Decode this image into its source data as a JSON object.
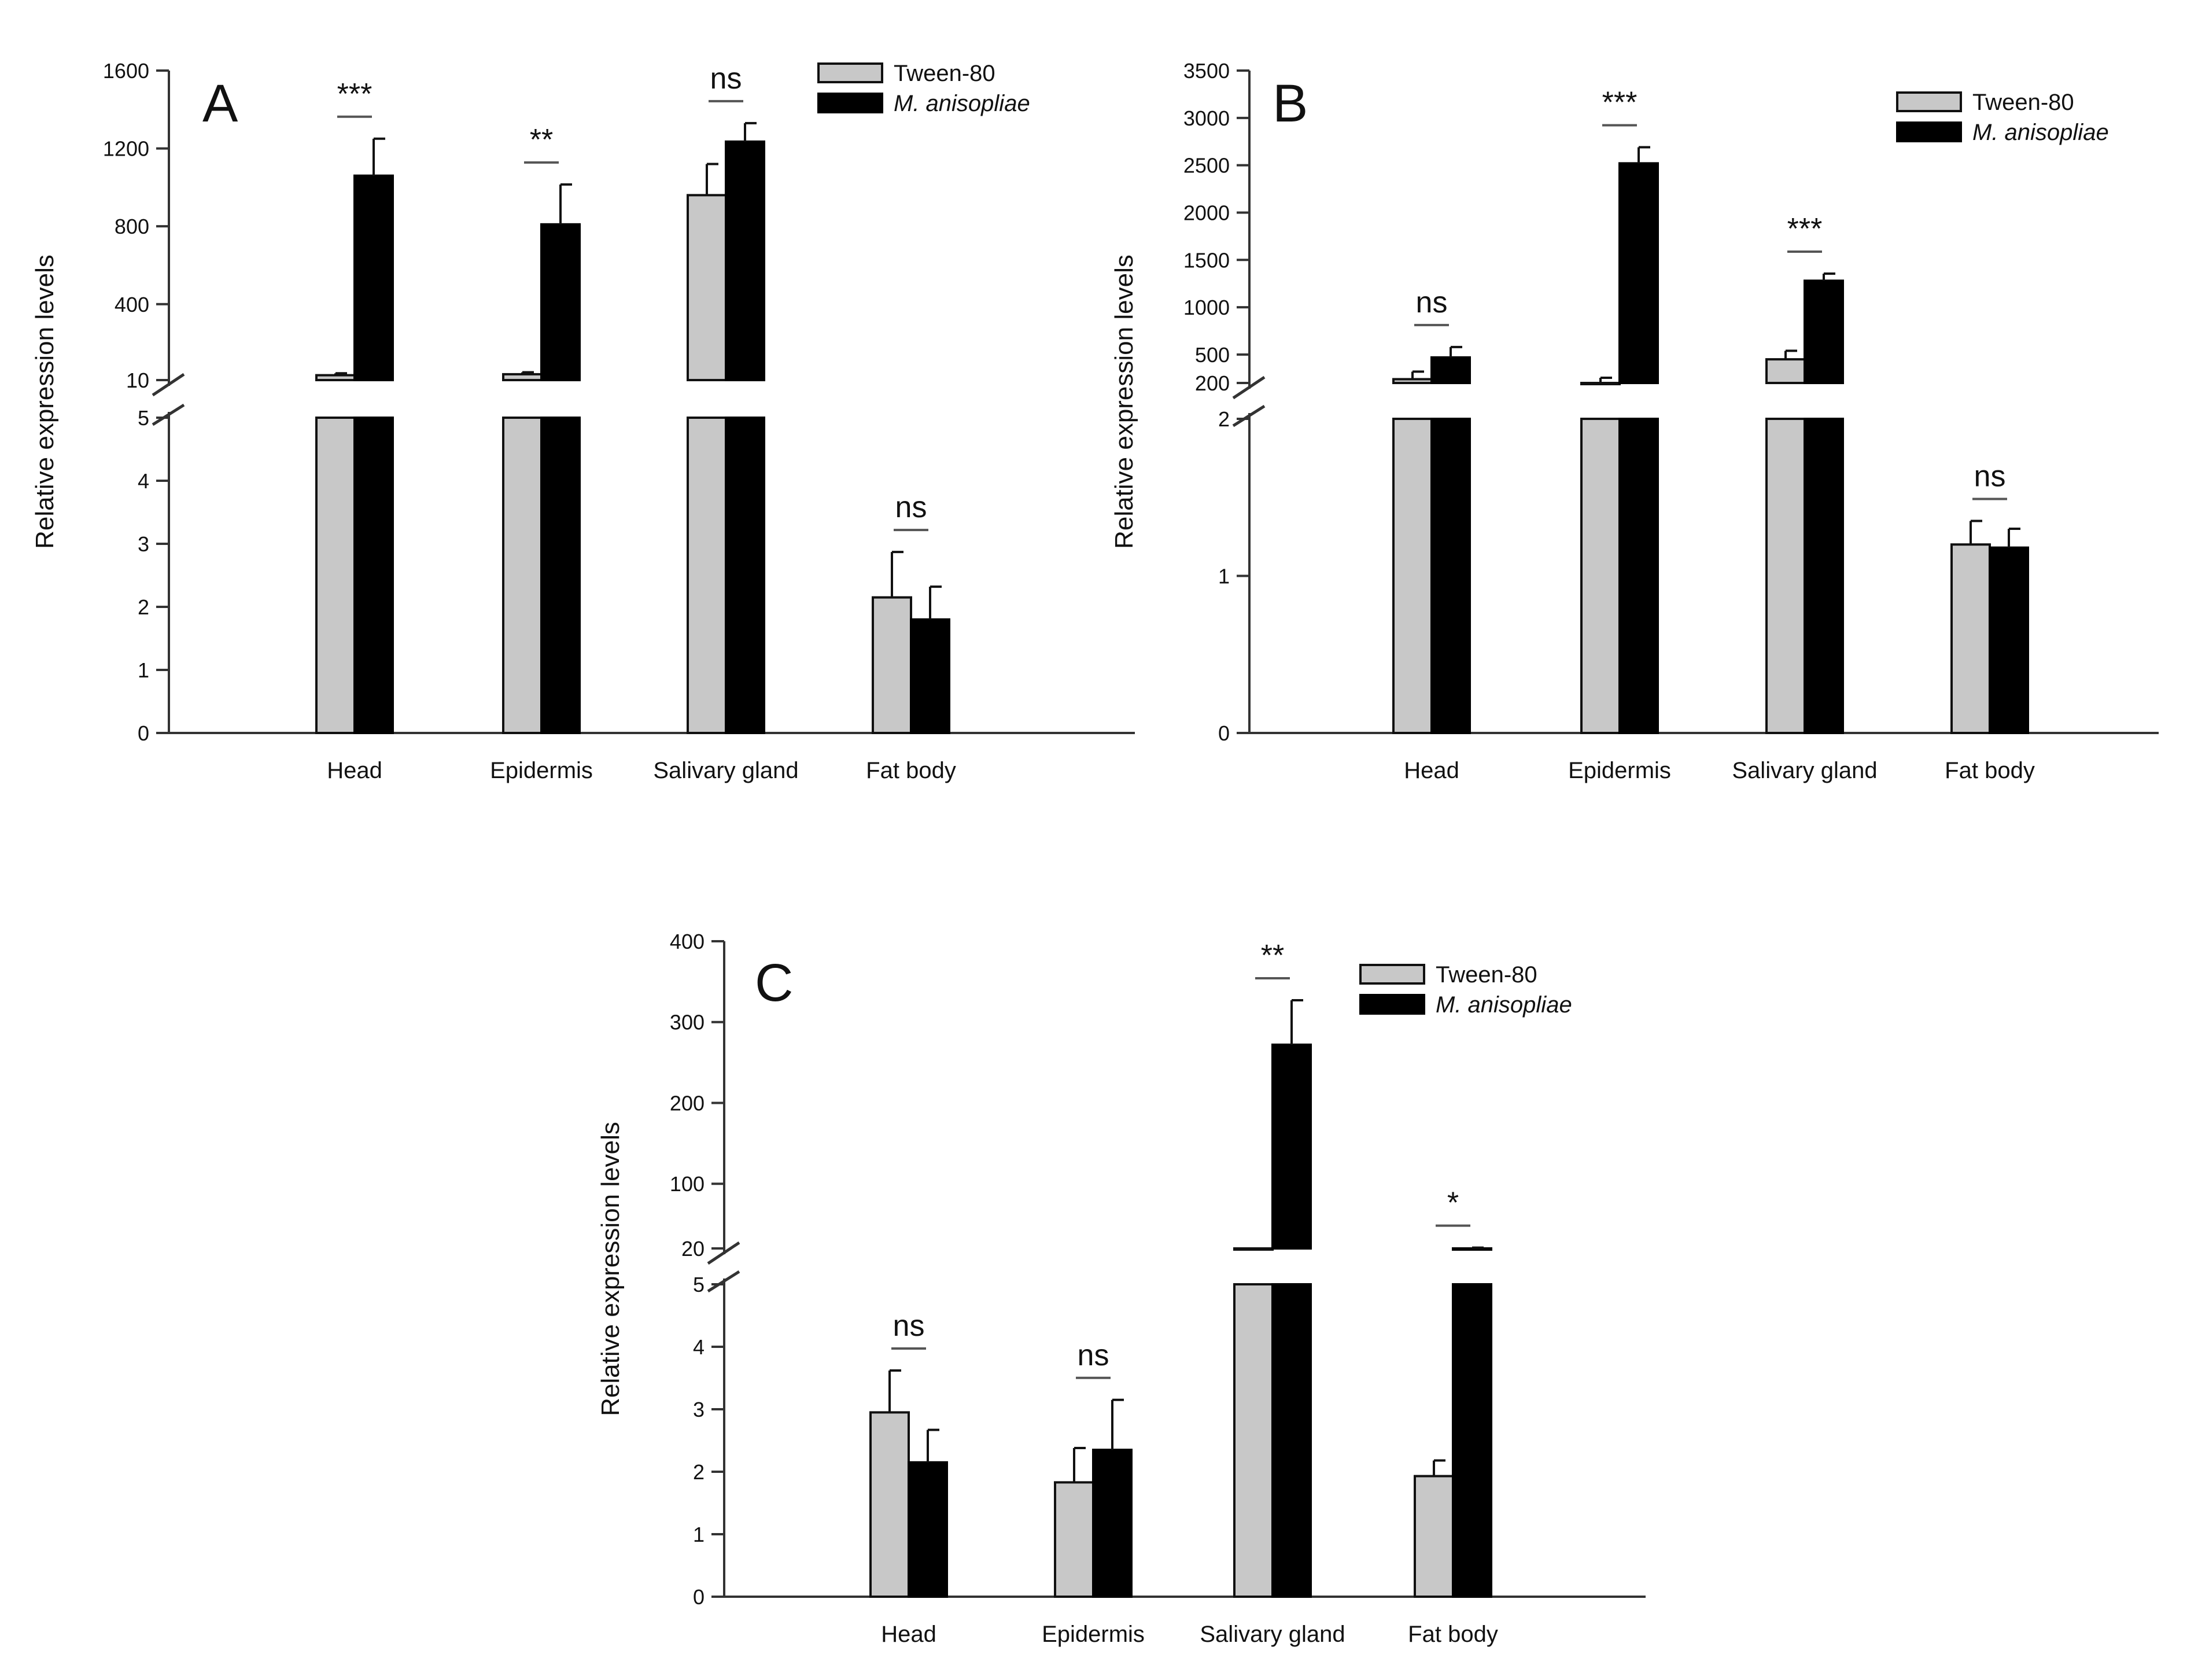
{
  "legend_labels": [
    "Tween-80",
    "M. anisopliae"
  ],
  "colors": {
    "tween": "#c8c8c8",
    "ma": "#000000",
    "axis": "#333333"
  },
  "chart_data": [
    {
      "type": "bar",
      "panel": "A",
      "ylabel": "Relative expression levels",
      "categories": [
        "Head",
        "Epidermis",
        "Salivary gland",
        "Fat body"
      ],
      "axis_break": {
        "lower_range": [
          0,
          5
        ],
        "upper_range": [
          10,
          1600
        ]
      },
      "lower_ticks": [
        0,
        1,
        2,
        3,
        4,
        5
      ],
      "upper_ticks": [
        10,
        400,
        800,
        1200,
        1600
      ],
      "series": [
        {
          "name": "Tween-80",
          "values": [
            35,
            40,
            960,
            2.15
          ],
          "errors": [
            10,
            10,
            160,
            0.72
          ]
        },
        {
          "name": "M. anisopliae",
          "values": [
            1060,
            810,
            1235,
            1.8
          ],
          "errors": [
            190,
            205,
            95,
            0.52
          ]
        }
      ],
      "significance": [
        "***",
        "**",
        "ns",
        "ns"
      ]
    },
    {
      "type": "bar",
      "panel": "B",
      "ylabel": "Relative expression levels",
      "categories": [
        "Head",
        "Epidermis",
        "Salivary gland",
        "Fat body"
      ],
      "axis_break": {
        "lower_range": [
          0,
          2
        ],
        "upper_range": [
          200,
          3500
        ]
      },
      "lower_ticks": [
        0,
        1,
        2
      ],
      "upper_ticks": [
        200,
        500,
        1000,
        1500,
        2000,
        2500,
        3000,
        3500
      ],
      "series": [
        {
          "name": "Tween-80",
          "values": [
            240,
            175,
            450,
            1.2
          ],
          "errors": [
            80,
            80,
            90,
            0.15
          ]
        },
        {
          "name": "M. anisopliae",
          "values": [
            470,
            2520,
            1280,
            1.18
          ],
          "errors": [
            110,
            170,
            75,
            0.12
          ]
        }
      ],
      "significance": [
        "ns",
        "***",
        "***",
        "ns"
      ]
    },
    {
      "type": "bar",
      "panel": "C",
      "ylabel": "Relative expression levels",
      "categories": [
        "Head",
        "Epidermis",
        "Salivary gland",
        "Fat body"
      ],
      "axis_break": {
        "lower_range": [
          0,
          5
        ],
        "upper_range": [
          20,
          400
        ]
      },
      "lower_ticks": [
        0,
        1,
        2,
        3,
        4,
        5
      ],
      "upper_ticks": [
        20,
        100,
        200,
        300,
        400
      ],
      "series": [
        {
          "name": "Tween-80",
          "values": [
            2.95,
            1.83,
            12,
            1.93
          ],
          "errors": [
            0.67,
            0.55,
            8,
            0.25
          ]
        },
        {
          "name": "M. anisopliae",
          "values": [
            2.15,
            2.35,
            272,
            15
          ],
          "errors": [
            0.52,
            0.8,
            55,
            6
          ]
        }
      ],
      "significance": [
        "ns",
        "ns",
        "**",
        "*"
      ]
    }
  ]
}
